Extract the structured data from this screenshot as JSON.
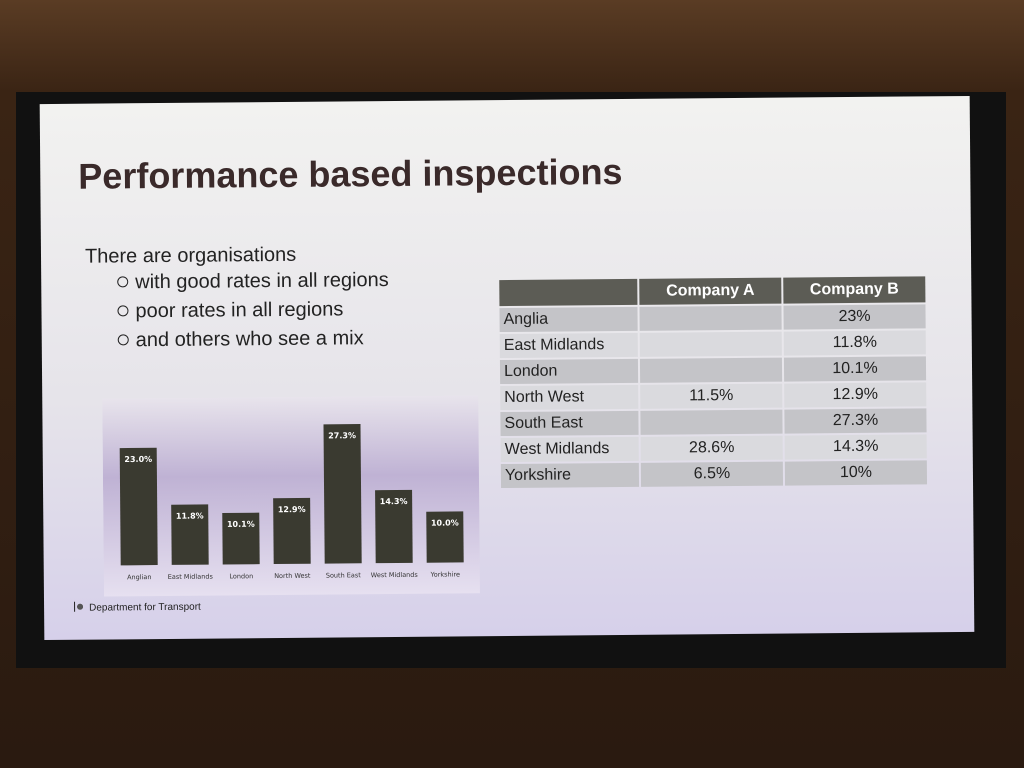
{
  "slide": {
    "title": "Performance based inspections",
    "intro": "There are organisations",
    "bullets": [
      "with good rates in all regions",
      "poor rates in all regions",
      "and others who see a mix"
    ],
    "footer": "Department for Transport"
  },
  "chart_data": {
    "type": "bar",
    "categories": [
      "Anglian",
      "East Midlands",
      "London",
      "North West",
      "South East",
      "West Midlands",
      "Yorkshire"
    ],
    "values": [
      23.0,
      11.8,
      10.1,
      12.9,
      27.3,
      14.3,
      10.0
    ],
    "value_labels": [
      "23.0%",
      "11.8%",
      "10.1%",
      "12.9%",
      "27.3%",
      "14.3%",
      "10.0%"
    ],
    "color": "#3a3a30"
  },
  "table": {
    "header": [
      "Company A",
      "Company B"
    ],
    "rows": [
      [
        "Anglia",
        null,
        "23%"
      ],
      [
        "East Midlands",
        null,
        "11.8%"
      ],
      [
        "London",
        null,
        "10.1%"
      ],
      [
        "North West",
        "11.5%",
        "12.9%"
      ],
      [
        "South East",
        null,
        "27.3%"
      ],
      [
        "West Midlands",
        "28.6%",
        "14.3%"
      ],
      [
        "Yorkshire",
        "6.5%",
        "10%"
      ]
    ]
  }
}
